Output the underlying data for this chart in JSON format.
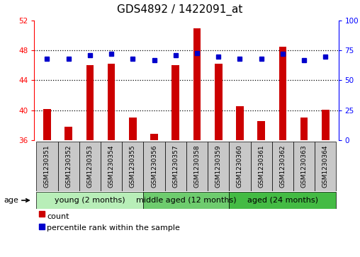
{
  "title": "GDS4892 / 1422091_at",
  "samples": [
    "GSM1230351",
    "GSM1230352",
    "GSM1230353",
    "GSM1230354",
    "GSM1230355",
    "GSM1230356",
    "GSM1230357",
    "GSM1230358",
    "GSM1230359",
    "GSM1230360",
    "GSM1230361",
    "GSM1230362",
    "GSM1230363",
    "GSM1230364"
  ],
  "counts": [
    40.2,
    37.8,
    46.0,
    46.2,
    39.0,
    36.8,
    46.0,
    51.0,
    46.2,
    40.5,
    38.5,
    48.5,
    39.0,
    40.1
  ],
  "percentiles": [
    68,
    68,
    71,
    72,
    68,
    67,
    71,
    73,
    70,
    68,
    68,
    72,
    67,
    70
  ],
  "ylim_left": [
    36,
    52
  ],
  "ylim_right": [
    0,
    100
  ],
  "yticks_left": [
    36,
    40,
    44,
    48,
    52
  ],
  "yticks_right": [
    0,
    25,
    50,
    75,
    100
  ],
  "groups": [
    {
      "label": "young (2 months)",
      "start": 0,
      "end": 5,
      "color": "#B8EEB8"
    },
    {
      "label": "middle aged (12 months)",
      "start": 5,
      "end": 9,
      "color": "#6ECC6E"
    },
    {
      "label": "aged (24 months)",
      "start": 9,
      "end": 14,
      "color": "#44BB44"
    }
  ],
  "bar_color": "#CC0000",
  "dot_color": "#0000CC",
  "bar_width": 0.35,
  "grid_color": "#000000",
  "bg_color": "#FFFFFF",
  "plot_bg": "#FFFFFF",
  "age_label": "age",
  "legend_count_label": "count",
  "legend_percentile_label": "percentile rank within the sample",
  "title_fontsize": 11,
  "tick_fontsize": 7.5,
  "label_fontsize": 6.5,
  "group_fontsize": 8
}
